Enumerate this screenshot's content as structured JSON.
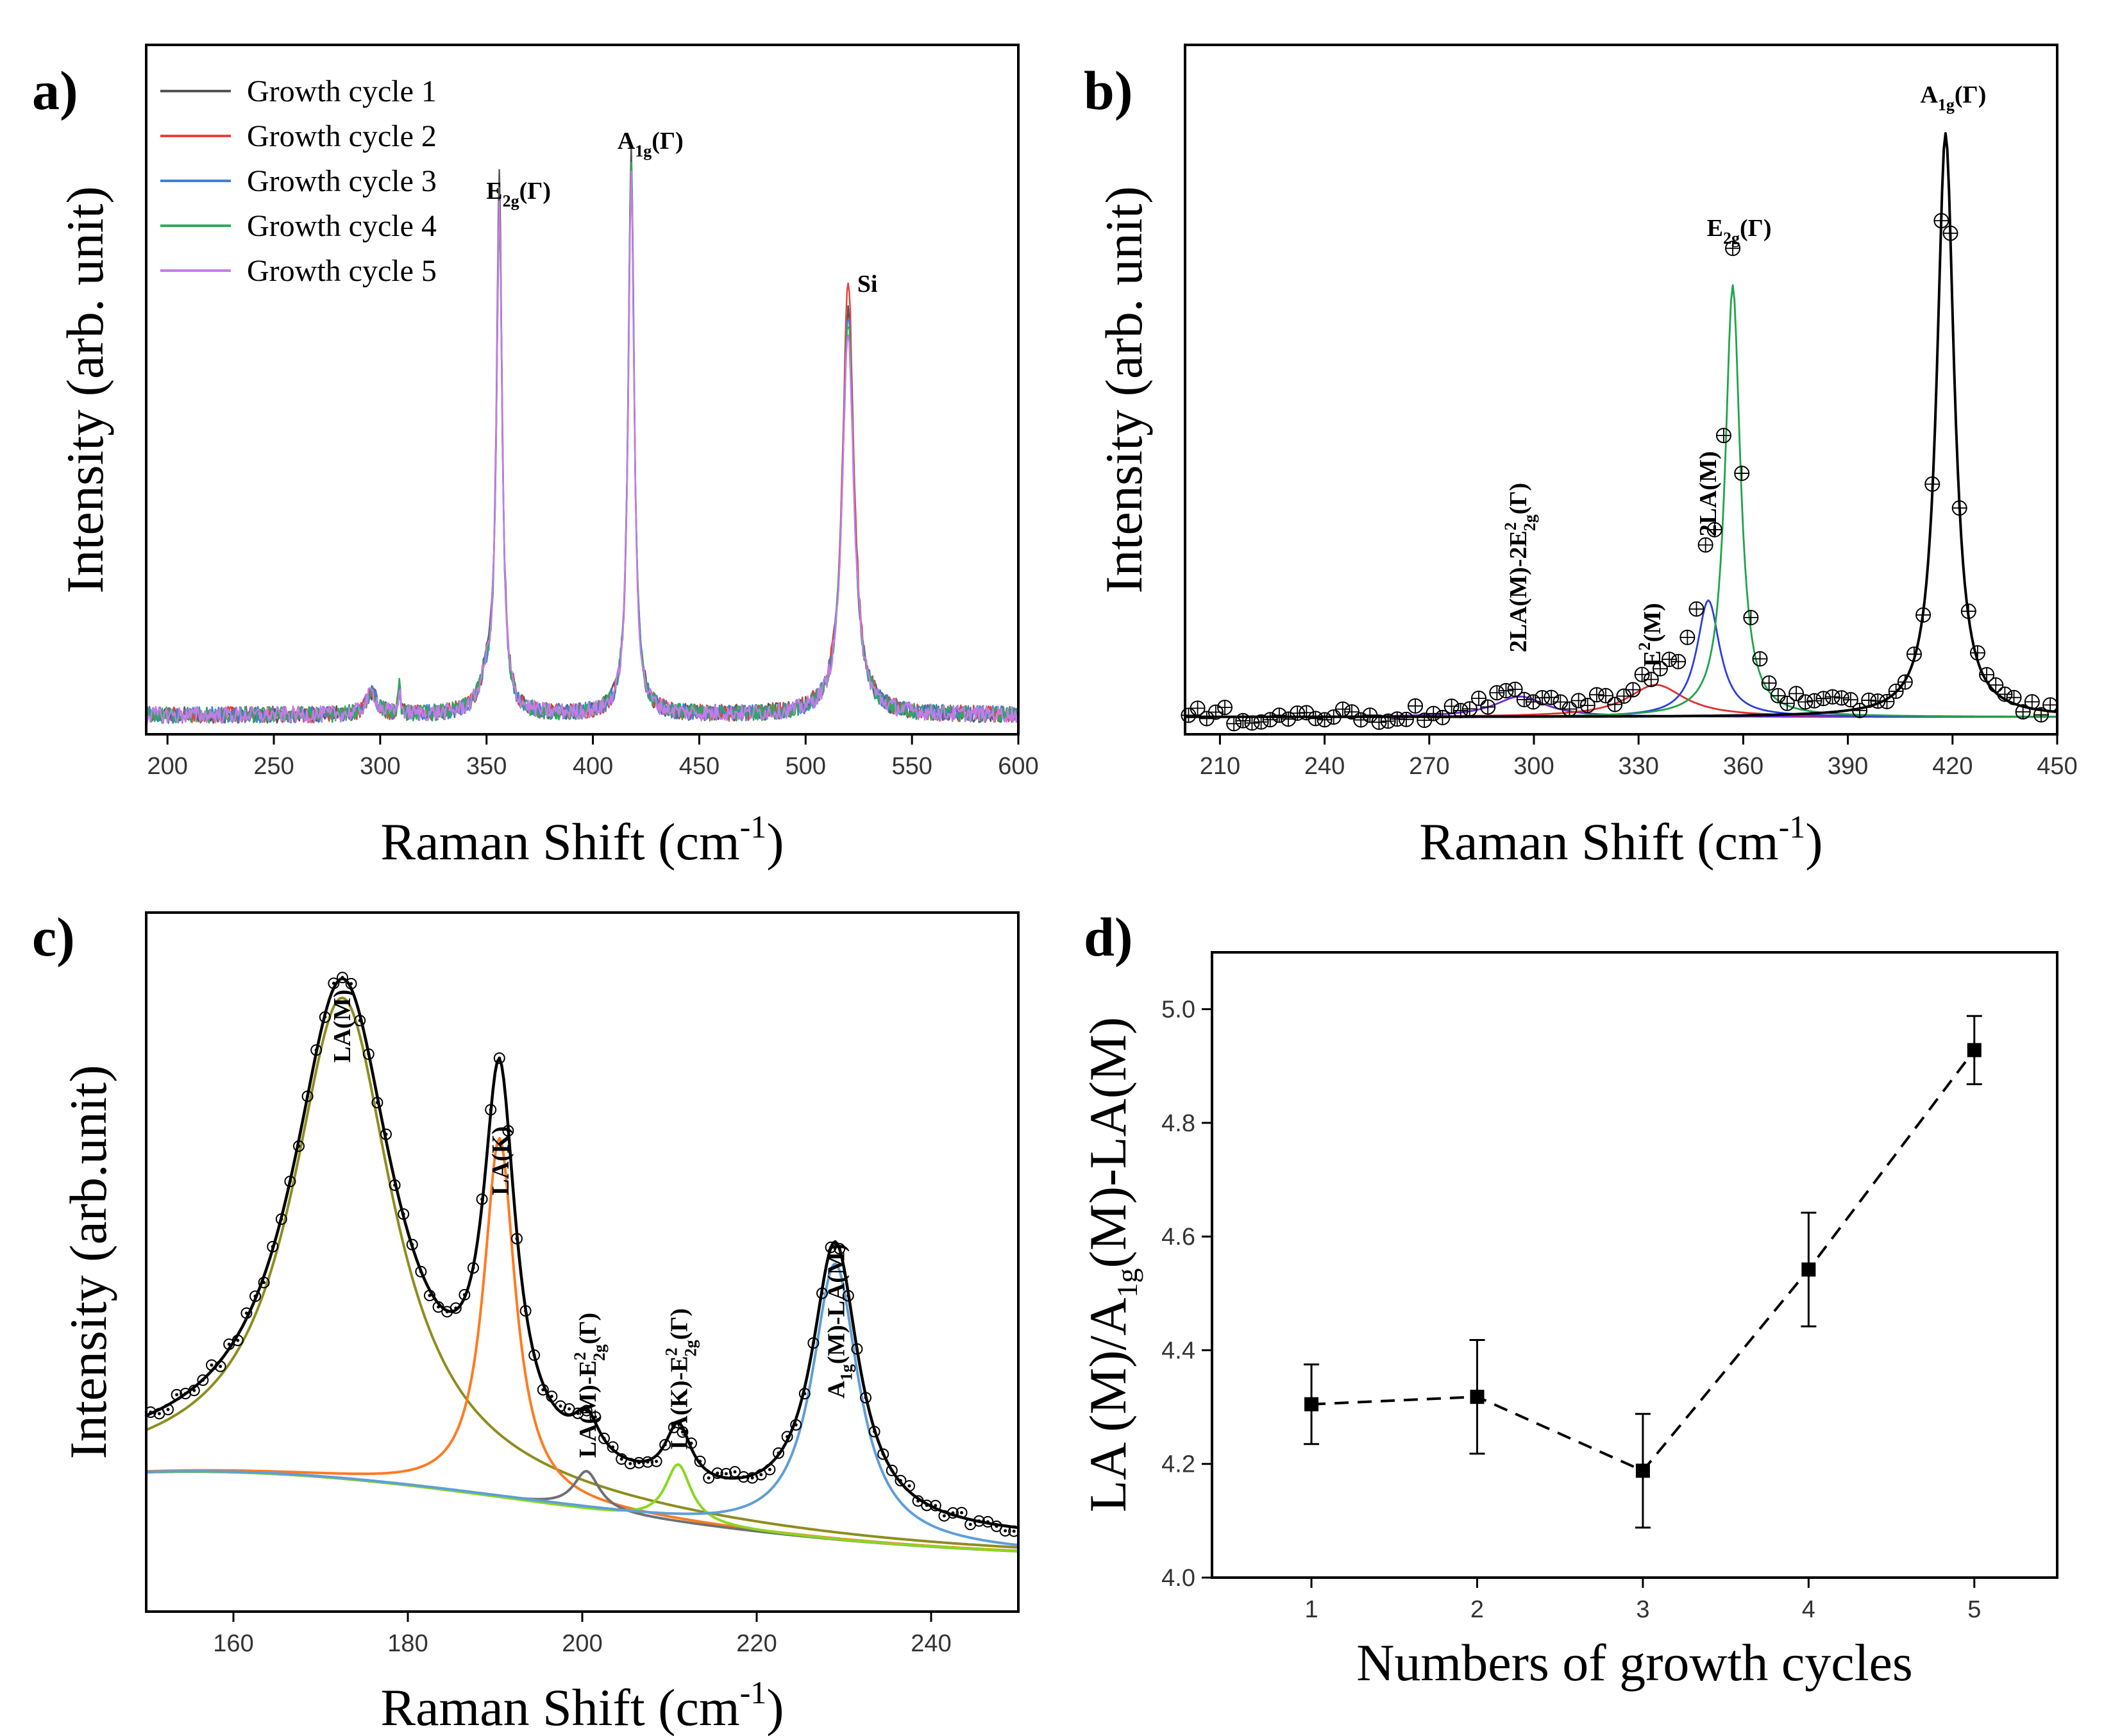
{
  "chart_data": [
    {
      "id": "a",
      "panel_label": "a)",
      "type": "line",
      "xlabel": "Raman Shift (cm",
      "xlabel_sup": "-1",
      "xlabel_end": ")",
      "ylabel": "Intensity (arb. unit)",
      "xlim": [
        190,
        600
      ],
      "xticks": [
        200,
        250,
        300,
        350,
        400,
        450,
        500,
        550,
        600
      ],
      "legend_position": "top-left",
      "peaks": [
        {
          "x": 356,
          "label": "E",
          "sub": "2g",
          "tail": "(Γ)"
        },
        {
          "x": 418,
          "label": "A",
          "sub": "1g",
          "tail": "(Γ)"
        },
        {
          "x": 520,
          "label": "Si",
          "sub": "",
          "tail": ""
        }
      ],
      "series": [
        {
          "name": "Growth cycle 1",
          "color": "#555555",
          "amps": [
            0.96,
            1.02,
            0.73
          ]
        },
        {
          "name": "Growth cycle 2",
          "color": "#e8413a",
          "amps": [
            0.92,
            0.98,
            0.79
          ]
        },
        {
          "name": "Growth cycle 3",
          "color": "#3d7fd8",
          "amps": [
            0.9,
            0.99,
            0.72
          ]
        },
        {
          "name": "Growth cycle 4",
          "color": "#2eaa5e",
          "amps": [
            0.89,
            1.0,
            0.71
          ]
        },
        {
          "name": "Growth cycle 5",
          "color": "#c47ce8",
          "amps": [
            0.91,
            0.97,
            0.7
          ]
        }
      ]
    },
    {
      "id": "b",
      "panel_label": "b)",
      "type": "line",
      "xlabel": "Raman Shift (cm",
      "xlabel_sup": "-1",
      "xlabel_end": ")",
      "ylabel": "Intensity (arb. unit)",
      "xlim": [
        200,
        450
      ],
      "xticks": [
        210,
        240,
        270,
        300,
        330,
        360,
        390,
        420,
        450
      ],
      "peaks": [
        {
          "x": 296,
          "label": "2LA(M)-2E",
          "sub": "2g",
          "sup": "2",
          "tail": "(Γ)"
        },
        {
          "x": 334,
          "label": "E",
          "sub": "",
          "sup": "2",
          "tail": "(M)",
          "post_sub": ""
        },
        {
          "x": 350,
          "label": "2LA(M)",
          "sub": "",
          "tail": ""
        },
        {
          "x": 357,
          "label": "E",
          "sub": "2g",
          "tail": "(Γ)"
        },
        {
          "x": 418,
          "label": "A",
          "sub": "1g",
          "tail": "(Γ)"
        }
      ],
      "components": [
        {
          "name": "2LA(M)-2E2g2(Γ)",
          "color": "#6a2fd0",
          "center": 296,
          "width": 9,
          "amp": 0.035
        },
        {
          "name": "E2(M)",
          "color": "#e03030",
          "center": 335,
          "width": 10,
          "amp": 0.055
        },
        {
          "name": "2LA(M)",
          "color": "#2a40e0",
          "center": 350,
          "width": 4,
          "amp": 0.2
        },
        {
          "name": "E2g(Γ)",
          "color": "#1fa34a",
          "center": 357,
          "width": 2.6,
          "amp": 0.74
        },
        {
          "name": "A1g(Γ)",
          "color": "#000000",
          "center": 418,
          "width": 3,
          "amp": 1.0
        }
      ]
    },
    {
      "id": "c",
      "panel_label": "c)",
      "type": "line",
      "xlabel": "Raman Shift (cm",
      "xlabel_sup": "-1",
      "xlabel_end": ")",
      "ylabel": "Intensity (arb.unit)",
      "xlim": [
        150,
        250
      ],
      "xticks": [
        160,
        180,
        200,
        220,
        240
      ],
      "peaks": [
        {
          "x": 172.5,
          "label": "LA(M)",
          "sub": "",
          "tail": ""
        },
        {
          "x": 190.5,
          "label": "LA(K)",
          "sub": "",
          "tail": ""
        },
        {
          "x": 200.5,
          "label": "LA(M)-E",
          "sub": "2g",
          "sup": "2",
          "tail": "(Γ)"
        },
        {
          "x": 211,
          "label": "LA(K)-E",
          "sub": "2g",
          "sup": "2",
          "tail": "(Γ)"
        },
        {
          "x": 229,
          "label": "A",
          "sub": "1g",
          "tail": "(M)-LA(M)"
        }
      ],
      "components": [
        {
          "name": "LA(M)",
          "color": "#8d8d1e",
          "center": 172.5,
          "width": 7,
          "amp": 0.75
        },
        {
          "name": "LA(K)",
          "color": "#ff7a22",
          "center": 190.5,
          "width": 2.2,
          "amp": 0.56
        },
        {
          "name": "LA(M)-E2g2(Γ)",
          "color": "#707070",
          "center": 200.5,
          "width": 1.8,
          "amp": 0.06
        },
        {
          "name": "LA(K)-E2g2(Γ)",
          "color": "#88d820",
          "center": 211,
          "width": 1.8,
          "amp": 0.09
        },
        {
          "name": "A1g(M)-LA(M)",
          "color": "#5e9ed8",
          "center": 229,
          "width": 3.2,
          "amp": 0.43
        }
      ]
    },
    {
      "id": "d",
      "panel_label": "d)",
      "type": "scatter",
      "xlabel": "Numbers of growth cycles",
      "ylabel": "LA (M)/A",
      "ylabel_sub": "1g",
      "ylabel_end": "(M)-LA(M)",
      "xlim": [
        0.4,
        5.5
      ],
      "ylim": [
        4.0,
        5.1
      ],
      "xticks": [
        1,
        2,
        3,
        4,
        5
      ],
      "yticks": [
        "4.0",
        "4.2",
        "4.4",
        "4.6",
        "4.8",
        "5.0"
      ],
      "x": [
        1,
        2,
        3,
        4,
        5
      ],
      "y": [
        4.305,
        4.318,
        4.188,
        4.542,
        4.928
      ],
      "yerr": [
        0.07,
        0.1,
        0.1,
        0.1,
        0.06
      ],
      "line_style": "dashed"
    }
  ]
}
